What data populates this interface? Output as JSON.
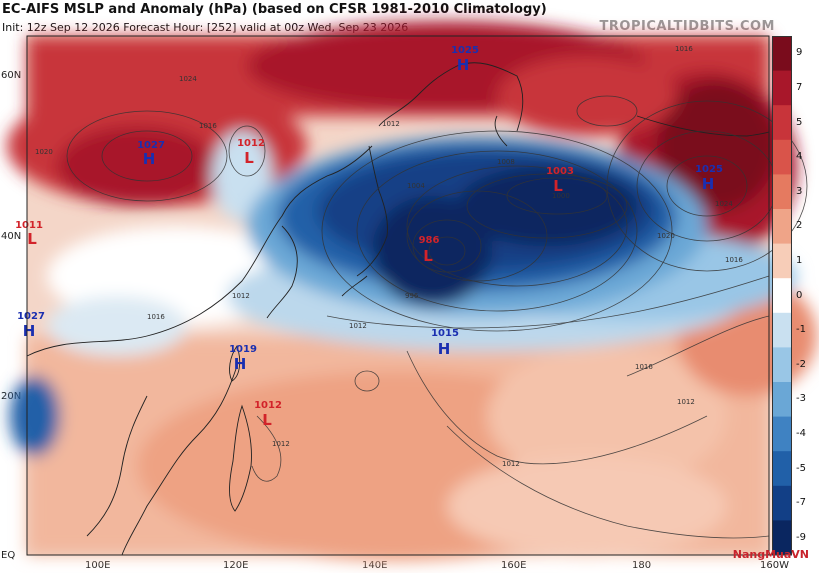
{
  "header": {
    "title": "EC-AIFS MSLP and Anomaly (hPa) (based on CFSR 1981-2010 Climatology)",
    "subtitle": "Init: 12z Sep 12 2026   Forecast Hour: [252]   valid at 00z Wed, Sep 23 2026",
    "credit": "TROPICALTIDBITS.COM"
  },
  "axes": {
    "lat_labels": [
      "60N",
      "40N",
      "20N",
      "EQ"
    ],
    "lon_labels": [
      "100E",
      "120E",
      "140E",
      "160E",
      "180",
      "160W"
    ]
  },
  "colorbar": {
    "labels": [
      "9",
      "7",
      "5",
      "4",
      "3",
      "2",
      "1",
      "0",
      "-1",
      "-2",
      "-3",
      "-4",
      "-5",
      "-7",
      "-9"
    ],
    "colors": [
      "#7a0c1c",
      "#a8172a",
      "#c8343a",
      "#d9544a",
      "#e57a60",
      "#efa488",
      "#f7cdb8",
      "#ffffff",
      "#c9e0f0",
      "#99c6e6",
      "#6aa7d6",
      "#3f82c2",
      "#2160a8",
      "#123f86",
      "#0a2660"
    ]
  },
  "pressure_centers": [
    {
      "type": "H",
      "value": "1025",
      "color": "#1a2fb0"
    },
    {
      "type": "H",
      "value": "1027",
      "color": "#1a2fb0"
    },
    {
      "type": "L",
      "value": "1012",
      "color": "#d2232a"
    },
    {
      "type": "L",
      "value": "1011",
      "color": "#d2232a"
    },
    {
      "type": "L",
      "value": "986",
      "color": "#d2232a"
    },
    {
      "type": "L",
      "value": "1003",
      "color": "#d2232a"
    },
    {
      "type": "H",
      "value": "1025",
      "color": "#1a2fb0"
    },
    {
      "type": "H",
      "value": "1027",
      "color": "#1a2fb0"
    },
    {
      "type": "H",
      "value": "1019",
      "color": "#1a2fb0"
    },
    {
      "type": "H",
      "value": "1015",
      "color": "#1a2fb0"
    },
    {
      "type": "L",
      "value": "1012",
      "color": "#d2232a"
    }
  ],
  "isobar_labels": [
    "1016",
    "1024",
    "1020",
    "1016",
    "1012",
    "1008",
    "1004",
    "1000",
    "996",
    "1012",
    "1016",
    "1020",
    "1024",
    "1016",
    "1012",
    "1012",
    "1012",
    "1016",
    "1012"
  ],
  "watermark": "NangMuaVN"
}
